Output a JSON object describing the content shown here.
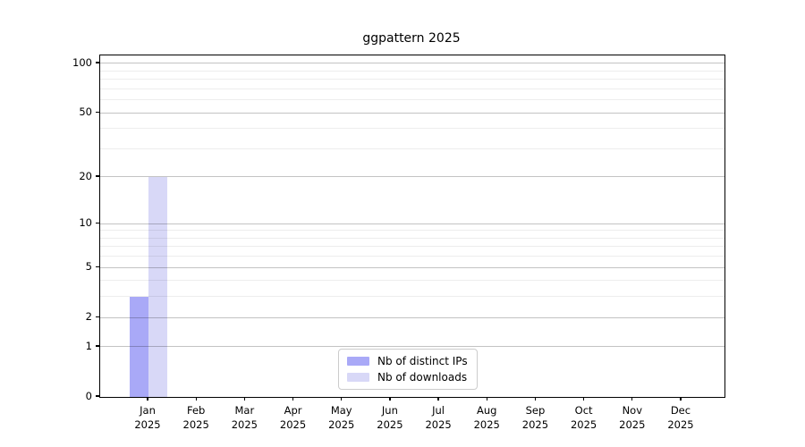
{
  "chart_data": {
    "type": "bar",
    "title": "ggpattern 2025",
    "y_scale": "log1p",
    "ylim": [
      0,
      112
    ],
    "y_ticks": [
      0,
      1,
      2,
      5,
      10,
      20,
      50,
      100
    ],
    "y_minor_gridlines": [
      3,
      4,
      6,
      7,
      8,
      9,
      30,
      40,
      60,
      70,
      80,
      90
    ],
    "x_tick_labels": [
      [
        "Jan",
        "2025"
      ],
      [
        "Feb",
        "2025"
      ],
      [
        "Mar",
        "2025"
      ],
      [
        "Apr",
        "2025"
      ],
      [
        "May",
        "2025"
      ],
      [
        "Jun",
        "2025"
      ],
      [
        "Jul",
        "2025"
      ],
      [
        "Aug",
        "2025"
      ],
      [
        "Sep",
        "2025"
      ],
      [
        "Oct",
        "2025"
      ],
      [
        "Nov",
        "2025"
      ],
      [
        "Dec",
        "2025"
      ]
    ],
    "series": [
      {
        "name": "Nb of distinct IPs",
        "color": "#a9a9f7",
        "values": [
          3,
          0,
          0,
          0,
          0,
          0,
          0,
          0,
          0,
          0,
          0,
          0
        ]
      },
      {
        "name": "Nb of downloads",
        "color": "#d8d8f7",
        "values": [
          20,
          0,
          0,
          0,
          0,
          0,
          0,
          0,
          0,
          0,
          0,
          0
        ]
      }
    ],
    "grid": {
      "major_color": "#c3c3c3",
      "minor_color": "#ededed"
    },
    "legend": {
      "position": "bottom-center"
    }
  }
}
